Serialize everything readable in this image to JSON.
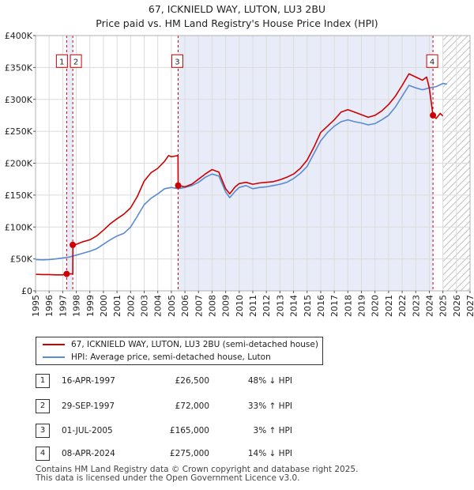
{
  "chart_data": {
    "type": "line",
    "title": "67, ICKNIELD WAY, LUTON, LU3 2BU",
    "subtitle": "Price paid vs. HM Land Registry's House Price Index (HPI)",
    "xlim": [
      1995,
      2027
    ],
    "ylim": [
      0,
      400000
    ],
    "x_ticks": [
      "1995",
      "1996",
      "1997",
      "1998",
      "1999",
      "2000",
      "2001",
      "2002",
      "2003",
      "2004",
      "2005",
      "2006",
      "2007",
      "2008",
      "2009",
      "2010",
      "2011",
      "2012",
      "2013",
      "2014",
      "2015",
      "2016",
      "2017",
      "2018",
      "2019",
      "2020",
      "2021",
      "2022",
      "2023",
      "2024",
      "2025",
      "2026",
      "2027"
    ],
    "y_ticks": [
      {
        "value": 0,
        "label": "£0"
      },
      {
        "value": 50000,
        "label": "£50K"
      },
      {
        "value": 100000,
        "label": "£100K"
      },
      {
        "value": 150000,
        "label": "£150K"
      },
      {
        "value": 200000,
        "label": "£200K"
      },
      {
        "value": 250000,
        "label": "£250K"
      },
      {
        "value": 300000,
        "label": "£300K"
      },
      {
        "value": 350000,
        "label": "£350K"
      },
      {
        "value": 400000,
        "label": "£400K"
      }
    ],
    "shade_ranges": [
      [
        1997.29,
        1997.74
      ],
      [
        2005.5,
        2024.27
      ]
    ],
    "hatch_from": 2025.0,
    "series": [
      {
        "name": "67, ICKNIELD WAY, LUTON, LU3 2BU (semi-detached house)",
        "color": "#cc0000",
        "points": [
          [
            1995.0,
            26000
          ],
          [
            1995.5,
            25500
          ],
          [
            1996.0,
            25500
          ],
          [
            1996.5,
            25000
          ],
          [
            1997.0,
            25000
          ],
          [
            1997.29,
            26500
          ],
          [
            1997.3,
            26500
          ],
          [
            1997.74,
            26500
          ],
          [
            1997.75,
            72000
          ],
          [
            1998.0,
            73000
          ],
          [
            1998.5,
            77000
          ],
          [
            1999.0,
            80000
          ],
          [
            1999.5,
            86000
          ],
          [
            2000.0,
            95000
          ],
          [
            2000.5,
            105000
          ],
          [
            2001.0,
            113000
          ],
          [
            2001.5,
            120000
          ],
          [
            2002.0,
            130000
          ],
          [
            2002.5,
            148000
          ],
          [
            2003.0,
            172000
          ],
          [
            2003.5,
            185000
          ],
          [
            2004.0,
            192000
          ],
          [
            2004.5,
            203000
          ],
          [
            2004.8,
            212000
          ],
          [
            2005.0,
            210000
          ],
          [
            2005.49,
            212000
          ],
          [
            2005.5,
            165000
          ],
          [
            2006.0,
            163000
          ],
          [
            2006.5,
            167000
          ],
          [
            2007.0,
            175000
          ],
          [
            2007.5,
            183000
          ],
          [
            2008.0,
            190000
          ],
          [
            2008.5,
            186000
          ],
          [
            2009.0,
            160000
          ],
          [
            2009.3,
            152000
          ],
          [
            2009.7,
            163000
          ],
          [
            2010.0,
            168000
          ],
          [
            2010.5,
            170000
          ],
          [
            2011.0,
            167000
          ],
          [
            2011.5,
            169000
          ],
          [
            2012.0,
            170000
          ],
          [
            2012.5,
            171000
          ],
          [
            2013.0,
            174000
          ],
          [
            2013.5,
            178000
          ],
          [
            2014.0,
            183000
          ],
          [
            2014.5,
            192000
          ],
          [
            2015.0,
            205000
          ],
          [
            2015.5,
            225000
          ],
          [
            2016.0,
            248000
          ],
          [
            2016.5,
            258000
          ],
          [
            2017.0,
            268000
          ],
          [
            2017.5,
            280000
          ],
          [
            2018.0,
            284000
          ],
          [
            2018.5,
            280000
          ],
          [
            2019.0,
            276000
          ],
          [
            2019.5,
            272000
          ],
          [
            2020.0,
            275000
          ],
          [
            2020.5,
            282000
          ],
          [
            2021.0,
            292000
          ],
          [
            2021.5,
            305000
          ],
          [
            2022.0,
            322000
          ],
          [
            2022.5,
            340000
          ],
          [
            2023.0,
            335000
          ],
          [
            2023.5,
            330000
          ],
          [
            2023.8,
            335000
          ],
          [
            2024.0,
            318000
          ],
          [
            2024.27,
            275000
          ],
          [
            2024.5,
            270000
          ],
          [
            2024.8,
            278000
          ],
          [
            2025.0,
            274000
          ]
        ]
      },
      {
        "name": "HPI: Average price, semi-detached house, Luton",
        "color": "#5a8ad0",
        "points": [
          [
            1995.0,
            49000
          ],
          [
            1995.5,
            48500
          ],
          [
            1996.0,
            49000
          ],
          [
            1996.5,
            50000
          ],
          [
            1997.0,
            51500
          ],
          [
            1997.5,
            53000
          ],
          [
            1998.0,
            56000
          ],
          [
            1998.5,
            59000
          ],
          [
            1999.0,
            62000
          ],
          [
            1999.5,
            66000
          ],
          [
            2000.0,
            73000
          ],
          [
            2000.5,
            80000
          ],
          [
            2001.0,
            86000
          ],
          [
            2001.5,
            90000
          ],
          [
            2002.0,
            100000
          ],
          [
            2002.5,
            117000
          ],
          [
            2003.0,
            135000
          ],
          [
            2003.5,
            145000
          ],
          [
            2004.0,
            152000
          ],
          [
            2004.5,
            160000
          ],
          [
            2005.0,
            162000
          ],
          [
            2005.5,
            160000
          ],
          [
            2006.0,
            162000
          ],
          [
            2006.5,
            165000
          ],
          [
            2007.0,
            170000
          ],
          [
            2007.5,
            178000
          ],
          [
            2008.0,
            183000
          ],
          [
            2008.5,
            180000
          ],
          [
            2009.0,
            155000
          ],
          [
            2009.3,
            146000
          ],
          [
            2009.7,
            156000
          ],
          [
            2010.0,
            162000
          ],
          [
            2010.5,
            165000
          ],
          [
            2011.0,
            160000
          ],
          [
            2011.5,
            162000
          ],
          [
            2012.0,
            163000
          ],
          [
            2012.5,
            165000
          ],
          [
            2013.0,
            167000
          ],
          [
            2013.5,
            170000
          ],
          [
            2014.0,
            176000
          ],
          [
            2014.5,
            184000
          ],
          [
            2015.0,
            195000
          ],
          [
            2015.5,
            215000
          ],
          [
            2016.0,
            235000
          ],
          [
            2016.5,
            248000
          ],
          [
            2017.0,
            258000
          ],
          [
            2017.5,
            265000
          ],
          [
            2018.0,
            268000
          ],
          [
            2018.5,
            265000
          ],
          [
            2019.0,
            263000
          ],
          [
            2019.5,
            260000
          ],
          [
            2020.0,
            262000
          ],
          [
            2020.5,
            268000
          ],
          [
            2021.0,
            275000
          ],
          [
            2021.5,
            288000
          ],
          [
            2022.0,
            305000
          ],
          [
            2022.5,
            322000
          ],
          [
            2023.0,
            318000
          ],
          [
            2023.5,
            315000
          ],
          [
            2024.0,
            318000
          ],
          [
            2024.5,
            320000
          ],
          [
            2025.0,
            325000
          ],
          [
            2025.3,
            324000
          ]
        ]
      }
    ],
    "sales": [
      {
        "num": "1",
        "x": 1997.29,
        "price": 26500,
        "date": "16-APR-1997",
        "price_label": "£26,500",
        "hpi": "48% ↓ HPI"
      },
      {
        "num": "2",
        "x": 1997.74,
        "price": 72000,
        "date": "29-SEP-1997",
        "price_label": "£72,000",
        "hpi": "33% ↑ HPI"
      },
      {
        "num": "3",
        "x": 2005.5,
        "price": 165000,
        "date": "01-JUL-2005",
        "price_label": "£165,000",
        "hpi": "3% ↑ HPI"
      },
      {
        "num": "4",
        "x": 2024.27,
        "price": 275000,
        "date": "08-APR-2024",
        "price_label": "£275,000",
        "hpi": "14% ↓ HPI"
      }
    ],
    "marker_label_y": 360000
  },
  "legend": {
    "property": "67, ICKNIELD WAY, LUTON, LU3 2BU (semi-detached house)",
    "hpi": "HPI: Average price, semi-detached house, Luton"
  },
  "footer": {
    "line1": "Contains HM Land Registry data © Crown copyright and database right 2025.",
    "line2": "This data is licensed under the Open Government Licence v3.0."
  }
}
